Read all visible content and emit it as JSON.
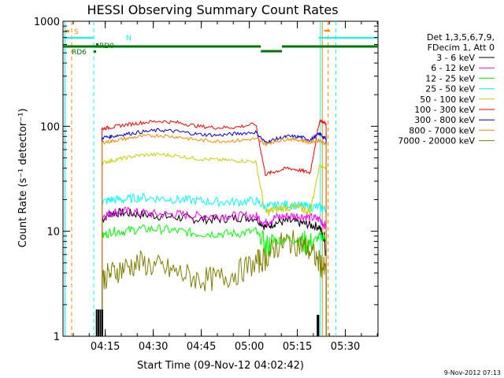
{
  "chart_data": {
    "type": "line",
    "title": "HESSI Observing Summary Count Rates",
    "xlabel": "Start Time (09-Nov-12 04:02:42)",
    "ylabel": "Count Rate (s⁻¹ detector⁻¹)",
    "yscale": "log",
    "ylim": [
      1,
      1000
    ],
    "xlim_minutes": [
      4.03,
      5.67
    ],
    "x_ticks": [
      "04:15",
      "04:30",
      "04:45",
      "05:00",
      "05:15",
      "05:30"
    ],
    "y_ticks": [
      "1",
      "10",
      "100",
      "1000"
    ],
    "legend_header": [
      "Det 1,3,5,6,7,9,",
      "FDecim 1, Att 0"
    ],
    "legend_position": "right",
    "grid": false,
    "x_time": [
      "04:11",
      "04:14",
      "04:17",
      "04:21",
      "04:26",
      "04:32",
      "04:38",
      "04:44",
      "04:50",
      "04:56",
      "05:02",
      "05:05",
      "05:08",
      "05:12",
      "05:16",
      "05:19",
      "05:22",
      "05:24",
      "05:26"
    ],
    "series": [
      {
        "name": "3 - 6 keV",
        "color": "#000000",
        "values": [
          null,
          13.0,
          15.0,
          15.0,
          14.5,
          14.0,
          13.5,
          13.0,
          13.0,
          13.5,
          13.5,
          11.0,
          12.0,
          12.5,
          12.0,
          11.5,
          11.0,
          7.0,
          null
        ]
      },
      {
        "name": "6 - 12 keV",
        "color": "#ff00ff",
        "values": [
          null,
          14.0,
          15.0,
          15.5,
          15.0,
          14.5,
          14.5,
          14.0,
          14.0,
          14.0,
          14.0,
          12.0,
          13.5,
          14.0,
          14.0,
          13.5,
          13.0,
          11.0,
          null
        ]
      },
      {
        "name": "12 - 25 keV",
        "color": "#00ff00",
        "values": [
          null,
          9.0,
          10.0,
          10.0,
          10.5,
          10.5,
          10.0,
          9.5,
          9.5,
          9.5,
          10.0,
          7.0,
          8.0,
          8.5,
          8.0,
          7.5,
          9.0,
          8.5,
          null
        ]
      },
      {
        "name": "25 - 50 keV",
        "color": "#00ffff",
        "values": [
          null,
          19.0,
          20.0,
          20.0,
          21.0,
          20.5,
          20.0,
          19.5,
          19.0,
          19.0,
          19.5,
          17.0,
          17.5,
          18.0,
          17.5,
          17.0,
          17.0,
          16.0,
          null
        ]
      },
      {
        "name": "50 - 100 keV",
        "color": "#cccc00",
        "values": [
          null,
          45.0,
          47.0,
          50.0,
          53.0,
          54.0,
          52.0,
          49.0,
          48.0,
          47.0,
          46.0,
          15.0,
          16.0,
          17.0,
          16.5,
          15.5,
          43.0,
          40.0,
          null
        ]
      },
      {
        "name": "100 - 300 keV",
        "color": "#ff0000",
        "values": [
          null,
          95.0,
          98.0,
          103.0,
          108.0,
          112.0,
          108.0,
          100.0,
          97.0,
          98.0,
          105.0,
          35.0,
          37.0,
          40.0,
          38.0,
          36.0,
          115.0,
          105.0,
          null
        ]
      },
      {
        "name": "300 - 800 keV",
        "color": "#0000cc",
        "values": [
          null,
          78.0,
          80.0,
          84.0,
          88.0,
          92.0,
          89.0,
          84.0,
          82.0,
          85.0,
          88.0,
          70.0,
          75.0,
          80.0,
          79.0,
          74.0,
          85.0,
          75.0,
          null
        ]
      },
      {
        "name": "800 - 7000 keV",
        "color": "#ff8800",
        "values": [
          null,
          70.0,
          72.0,
          76.0,
          80.0,
          82.0,
          79.0,
          74.0,
          72.0,
          73.0,
          76.0,
          68.0,
          72.0,
          76.0,
          74.0,
          70.0,
          74.0,
          68.0,
          null
        ]
      },
      {
        "name": "7000 - 20000 keV",
        "color": "#808000",
        "values": [
          null,
          3.5,
          4.0,
          4.5,
          5.0,
          4.5,
          4.0,
          3.5,
          3.5,
          4.0,
          5.0,
          5.5,
          7.0,
          8.0,
          7.5,
          6.5,
          5.0,
          4.0,
          null
        ]
      }
    ],
    "flags": [
      {
        "label": "S",
        "color": "#ff8800"
      },
      {
        "label": "N",
        "color": "#00ffff"
      },
      {
        "label": "RD6",
        "color": "#007700"
      },
      {
        "label": "RD0",
        "color": "#007700"
      }
    ]
  },
  "footer": {
    "timestamp": "9-Nov-2012 07:13"
  }
}
